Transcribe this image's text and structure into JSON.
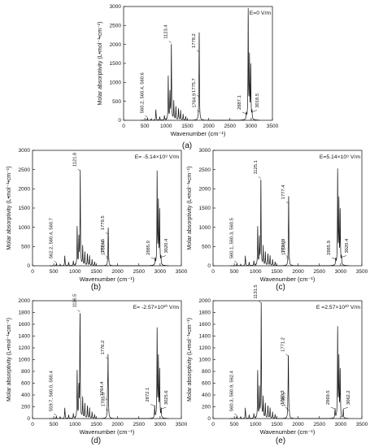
{
  "chart_data": [
    {
      "type": "line",
      "panel_label": "(a)",
      "field_label": "E=0 V/m",
      "xlabel": "Wavenumber (cm⁻¹)",
      "ylabel": "Molar absorptivity (L•mol⁻¹•cm⁻¹)",
      "xlim": [
        0,
        3500
      ],
      "ylim": [
        0,
        3000
      ],
      "x_ticks": [
        "0",
        "500",
        "1000",
        "1500",
        "2000",
        "2500",
        "3000",
        "3500"
      ],
      "y_ticks": [
        "0",
        "500",
        "1000",
        "1500",
        "2000",
        "2500",
        "3000"
      ],
      "peaks": [
        {
          "x": 560,
          "y": 60
        },
        {
          "x": 650,
          "y": 40
        },
        {
          "x": 760,
          "y": 280
        },
        {
          "x": 850,
          "y": 90
        },
        {
          "x": 960,
          "y": 120
        },
        {
          "x": 1050,
          "y": 1150
        },
        {
          "x": 1090,
          "y": 700
        },
        {
          "x": 1123,
          "y": 2020
        },
        {
          "x": 1180,
          "y": 500
        },
        {
          "x": 1230,
          "y": 350
        },
        {
          "x": 1290,
          "y": 300
        },
        {
          "x": 1340,
          "y": 260
        },
        {
          "x": 1400,
          "y": 160
        },
        {
          "x": 1460,
          "y": 100
        },
        {
          "x": 1776,
          "y": 600
        },
        {
          "x": 1778,
          "y": 1780
        },
        {
          "x": 2887,
          "y": 150
        },
        {
          "x": 2930,
          "y": 2880
        },
        {
          "x": 2960,
          "y": 1620
        },
        {
          "x": 2990,
          "y": 1400
        },
        {
          "x": 3019,
          "y": 200
        }
      ],
      "annotations": [
        {
          "text": "560.2, 560.4, 560.6",
          "x": 560,
          "y": 60
        },
        {
          "text": "1123.4",
          "x": 1123,
          "y": 2020
        },
        {
          "text": "1775.7",
          "x": 1776,
          "y": 600
        },
        {
          "text": "1778.2",
          "x": 1778,
          "y": 1780
        },
        {
          "text": "1784.9",
          "x": 1785,
          "y": 200
        },
        {
          "text": "2887.1",
          "x": 2887,
          "y": 150
        },
        {
          "text": "3018.5",
          "x": 3019,
          "y": 200
        }
      ]
    },
    {
      "type": "line",
      "panel_label": "(b)",
      "field_label": "E= -5.14×10⁹ V/m",
      "xlabel": "Wavenumber (cm⁻¹)",
      "ylabel": "Molar absorptivity (L•mol⁻¹•cm⁻¹)",
      "xlim": [
        0,
        3500
      ],
      "ylim": [
        0,
        3000
      ],
      "x_ticks": [
        "0",
        "500",
        "1000",
        "1500",
        "2000",
        "2500",
        "3000",
        "3500"
      ],
      "y_ticks": [
        "0",
        "500",
        "1000",
        "1500",
        "2000",
        "2500",
        "3000"
      ],
      "peaks": [
        {
          "x": 562,
          "y": 60
        },
        {
          "x": 650,
          "y": 40
        },
        {
          "x": 760,
          "y": 260
        },
        {
          "x": 850,
          "y": 90
        },
        {
          "x": 960,
          "y": 120
        },
        {
          "x": 1050,
          "y": 1000
        },
        {
          "x": 1090,
          "y": 700
        },
        {
          "x": 1122,
          "y": 2450
        },
        {
          "x": 1180,
          "y": 500
        },
        {
          "x": 1230,
          "y": 350
        },
        {
          "x": 1290,
          "y": 300
        },
        {
          "x": 1340,
          "y": 260
        },
        {
          "x": 1400,
          "y": 160
        },
        {
          "x": 1460,
          "y": 100
        },
        {
          "x": 1775,
          "y": 200
        },
        {
          "x": 1780,
          "y": 800
        },
        {
          "x": 1786,
          "y": 150
        },
        {
          "x": 2885,
          "y": 150
        },
        {
          "x": 2930,
          "y": 2400
        },
        {
          "x": 2960,
          "y": 1600
        },
        {
          "x": 2990,
          "y": 1400
        },
        {
          "x": 3020,
          "y": 200
        }
      ],
      "annotations": [
        {
          "text": "562.2, 560.4, 560.7",
          "x": 562,
          "y": 60
        },
        {
          "text": "1121.8",
          "x": 1122,
          "y": 2450
        },
        {
          "text": "1774.5",
          "x": 1775,
          "y": 200
        },
        {
          "text": "1779.5",
          "x": 1780,
          "y": 800
        },
        {
          "text": "1786.4",
          "x": 1786,
          "y": 150
        },
        {
          "text": "2885.0",
          "x": 2885,
          "y": 150
        },
        {
          "text": "3020.4",
          "x": 3020,
          "y": 200
        }
      ]
    },
    {
      "type": "line",
      "panel_label": "(c)",
      "field_label": "E=5.14×10⁹ V/m",
      "xlabel": "Wavenumber (cm⁻¹)",
      "ylabel": "Molar absorptivity (L•mol⁻¹•cm⁻¹)",
      "xlim": [
        0,
        3500
      ],
      "ylim": [
        0,
        3000
      ],
      "x_ticks": [
        "0",
        "500",
        "1000",
        "1500",
        "2000",
        "2500",
        "3000",
        "3500"
      ],
      "y_ticks": [
        "0",
        "500",
        "1000",
        "1500",
        "2000",
        "2500",
        "3000"
      ],
      "peaks": [
        {
          "x": 560,
          "y": 60
        },
        {
          "x": 650,
          "y": 40
        },
        {
          "x": 760,
          "y": 260
        },
        {
          "x": 850,
          "y": 90
        },
        {
          "x": 960,
          "y": 120
        },
        {
          "x": 1050,
          "y": 1000
        },
        {
          "x": 1090,
          "y": 700
        },
        {
          "x": 1125,
          "y": 2250
        },
        {
          "x": 1180,
          "y": 500
        },
        {
          "x": 1230,
          "y": 350
        },
        {
          "x": 1290,
          "y": 300
        },
        {
          "x": 1340,
          "y": 260
        },
        {
          "x": 1400,
          "y": 160
        },
        {
          "x": 1460,
          "y": 100
        },
        {
          "x": 1775,
          "y": 200
        },
        {
          "x": 1777,
          "y": 1600
        },
        {
          "x": 1784,
          "y": 150
        },
        {
          "x": 2886,
          "y": 150
        },
        {
          "x": 2930,
          "y": 2450
        },
        {
          "x": 2960,
          "y": 1650
        },
        {
          "x": 2990,
          "y": 1400
        },
        {
          "x": 3020,
          "y": 200
        }
      ],
      "annotations": [
        {
          "text": "560.1, 560.3, 560.5",
          "x": 560,
          "y": 60
        },
        {
          "text": "1125.1",
          "x": 1125,
          "y": 2250
        },
        {
          "text": "1774.9",
          "x": 1775,
          "y": 200
        },
        {
          "text": "1777.4",
          "x": 1777,
          "y": 1600
        },
        {
          "text": "1784.2",
          "x": 1784,
          "y": 150
        },
        {
          "text": "2885.9",
          "x": 2886,
          "y": 150
        },
        {
          "text": "3020.4",
          "x": 3020,
          "y": 200
        }
      ]
    },
    {
      "type": "line",
      "panel_label": "(d)",
      "field_label": "E= -2.57×10¹⁰ V/m",
      "xlabel": "Wavenumber (cm⁻¹)",
      "ylabel": "Molar absorptivity (L•mol⁻¹•cm⁻¹)",
      "xlim": [
        0,
        3500
      ],
      "ylim": [
        0,
        2000
      ],
      "x_ticks": [
        "0",
        "500",
        "1000",
        "1500",
        "2000",
        "2500",
        "3000",
        "3500"
      ],
      "y_ticks": [
        "0",
        "200",
        "400",
        "600",
        "800",
        "1000",
        "1200",
        "1400",
        "1600",
        "1800",
        "2000"
      ],
      "peaks": [
        {
          "x": 560,
          "y": 40
        },
        {
          "x": 650,
          "y": 30
        },
        {
          "x": 760,
          "y": 180
        },
        {
          "x": 850,
          "y": 60
        },
        {
          "x": 960,
          "y": 80
        },
        {
          "x": 1050,
          "y": 800
        },
        {
          "x": 1090,
          "y": 500
        },
        {
          "x": 1117,
          "y": 1800
        },
        {
          "x": 1180,
          "y": 350
        },
        {
          "x": 1230,
          "y": 250
        },
        {
          "x": 1290,
          "y": 210
        },
        {
          "x": 1340,
          "y": 180
        },
        {
          "x": 1400,
          "y": 110
        },
        {
          "x": 1460,
          "y": 70
        },
        {
          "x": 1764,
          "y": 300
        },
        {
          "x": 1776,
          "y": 1000
        },
        {
          "x": 1786,
          "y": 120
        },
        {
          "x": 2872,
          "y": 200
        },
        {
          "x": 2930,
          "y": 1500
        },
        {
          "x": 2960,
          "y": 1000
        },
        {
          "x": 2990,
          "y": 800
        },
        {
          "x": 3026,
          "y": 150
        }
      ],
      "annotations": [
        {
          "text": "559.7, 560.0, 560.4",
          "x": 560,
          "y": 40
        },
        {
          "text": "1116.5",
          "x": 1117,
          "y": 1800
        },
        {
          "text": "1764.4",
          "x": 1764,
          "y": 300
        },
        {
          "text": "1776.2",
          "x": 1776,
          "y": 1000
        },
        {
          "text": "1785.9",
          "x": 1786,
          "y": 120
        },
        {
          "text": "2872.1",
          "x": 2872,
          "y": 200
        },
        {
          "text": "3025.6",
          "x": 3026,
          "y": 150
        }
      ]
    },
    {
      "type": "line",
      "panel_label": "(e)",
      "field_label": "E =2.57×10¹⁰ V/m",
      "xlabel": "Wavenumber (cm⁻¹)",
      "ylabel": "Molar absorptivity (L•mol⁻¹•cm⁻¹)",
      "xlim": [
        0,
        3500
      ],
      "ylim": [
        0,
        2000
      ],
      "x_ticks": [
        "0",
        "500",
        "1000",
        "1500",
        "2000",
        "2500",
        "3000",
        "3500"
      ],
      "y_ticks": [
        "0",
        "200",
        "400",
        "600",
        "800",
        "1000",
        "1200",
        "1400",
        "1600",
        "1800",
        "2000"
      ],
      "peaks": [
        {
          "x": 560,
          "y": 40
        },
        {
          "x": 650,
          "y": 30
        },
        {
          "x": 760,
          "y": 180
        },
        {
          "x": 850,
          "y": 60
        },
        {
          "x": 960,
          "y": 80
        },
        {
          "x": 1050,
          "y": 800
        },
        {
          "x": 1090,
          "y": 500
        },
        {
          "x": 1132,
          "y": 1950
        },
        {
          "x": 1180,
          "y": 350
        },
        {
          "x": 1230,
          "y": 250
        },
        {
          "x": 1290,
          "y": 210
        },
        {
          "x": 1340,
          "y": 180
        },
        {
          "x": 1400,
          "y": 110
        },
        {
          "x": 1460,
          "y": 70
        },
        {
          "x": 1760,
          "y": 150
        },
        {
          "x": 1771,
          "y": 1050
        },
        {
          "x": 1791,
          "y": 120
        },
        {
          "x": 2869,
          "y": 150
        },
        {
          "x": 2930,
          "y": 1520
        },
        {
          "x": 2960,
          "y": 1000
        },
        {
          "x": 2990,
          "y": 800
        },
        {
          "x": 3062,
          "y": 150
        }
      ],
      "annotations": [
        {
          "text": "560.3, 560.9, 562.4",
          "x": 560,
          "y": 40
        },
        {
          "text": "1131.5",
          "x": 1132,
          "y": 1950
        },
        {
          "text": "1760.3",
          "x": 1760,
          "y": 150
        },
        {
          "text": "1771.2",
          "x": 1771,
          "y": 1050
        },
        {
          "text": "1790.5",
          "x": 1791,
          "y": 120
        },
        {
          "text": "2869.5",
          "x": 2869,
          "y": 150
        },
        {
          "text": "3062.2",
          "x": 3062,
          "y": 150
        }
      ]
    }
  ]
}
